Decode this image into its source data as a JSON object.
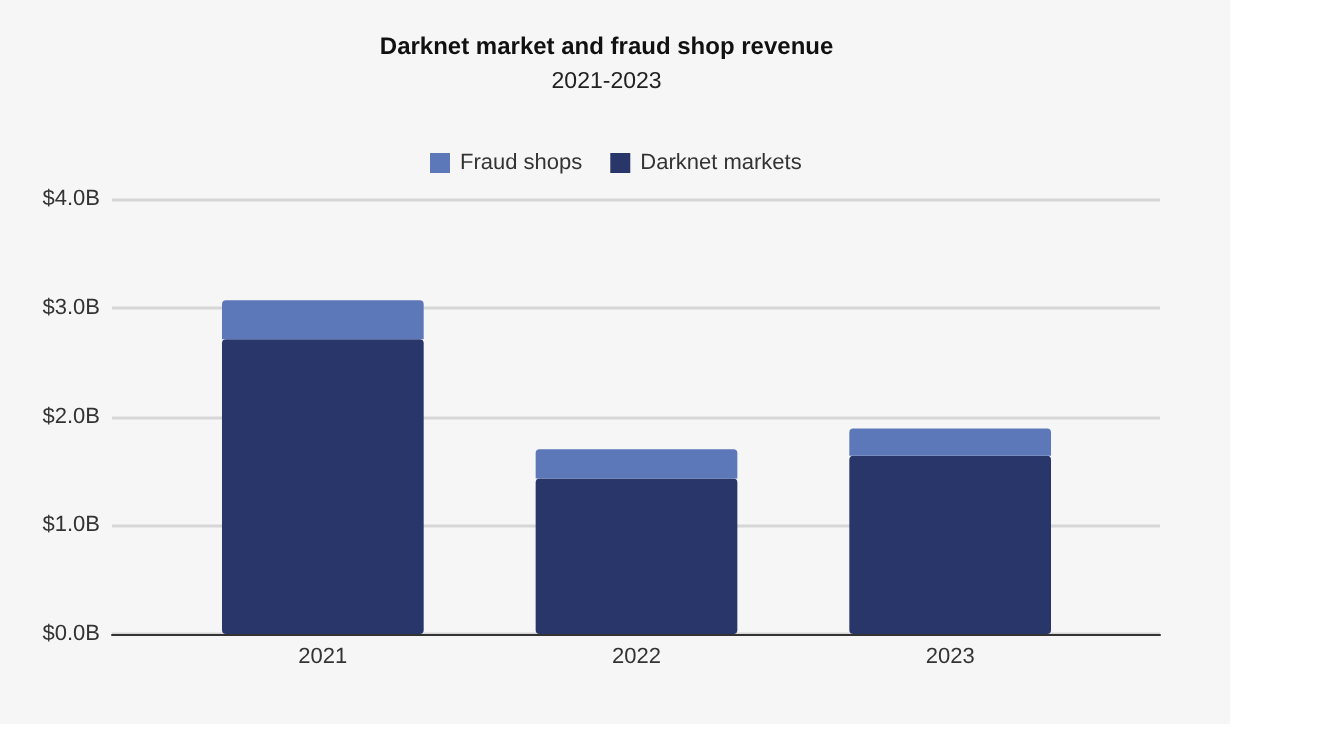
{
  "chart_data": {
    "type": "bar",
    "title": "Darknet market and fraud shop revenue",
    "subtitle": "2021-2023",
    "categories": [
      "2021",
      "2022",
      "2023"
    ],
    "stacked": true,
    "series": [
      {
        "name": "Darknet markets",
        "color": "#283669",
        "values": [
          2.71,
          1.43,
          1.64
        ]
      },
      {
        "name": "Fraud shops",
        "color": "#5c78b9",
        "values": [
          0.36,
          0.27,
          0.25
        ]
      }
    ],
    "ylim": [
      0,
      4
    ],
    "yticks": [
      {
        "value": 0,
        "label": "$0.0B"
      },
      {
        "value": 1,
        "label": "$1.0B"
      },
      {
        "value": 2,
        "label": "$2.0B"
      },
      {
        "value": 3,
        "label": "$3.0B"
      },
      {
        "value": 4,
        "label": "$4.0B"
      }
    ],
    "grid": "y",
    "legend": "top"
  }
}
